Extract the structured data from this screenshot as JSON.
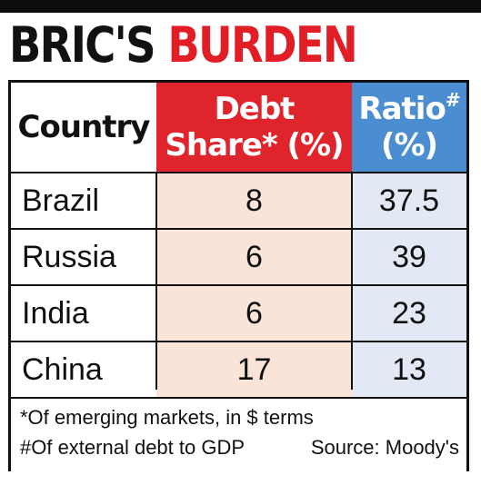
{
  "headline": {
    "word1": "BRIC'S",
    "word2": "BURDEN"
  },
  "table": {
    "headers": {
      "country": "Country",
      "debt_line1": "Debt",
      "debt_line2": "Share* (%)",
      "ratio_line1": "Ratio",
      "ratio_mark": "#",
      "ratio_line2": "(%)"
    },
    "rows": [
      {
        "country": "Brazil",
        "debt_share": "8",
        "ratio": "37.5"
      },
      {
        "country": "Russia",
        "debt_share": "6",
        "ratio": "39"
      },
      {
        "country": "India",
        "debt_share": "6",
        "ratio": "23"
      },
      {
        "country": "China",
        "debt_share": "17",
        "ratio": "13"
      }
    ]
  },
  "footnotes": {
    "note1": "*Of emerging markets, in $ terms",
    "note2": "#Of external debt to GDP",
    "source": "Source: Moody's"
  },
  "colors": {
    "accent_red": "#e0242b",
    "accent_blue": "#4a8ed1",
    "debt_fill": "#fae3d7",
    "ratio_fill": "#e2e9f5"
  }
}
